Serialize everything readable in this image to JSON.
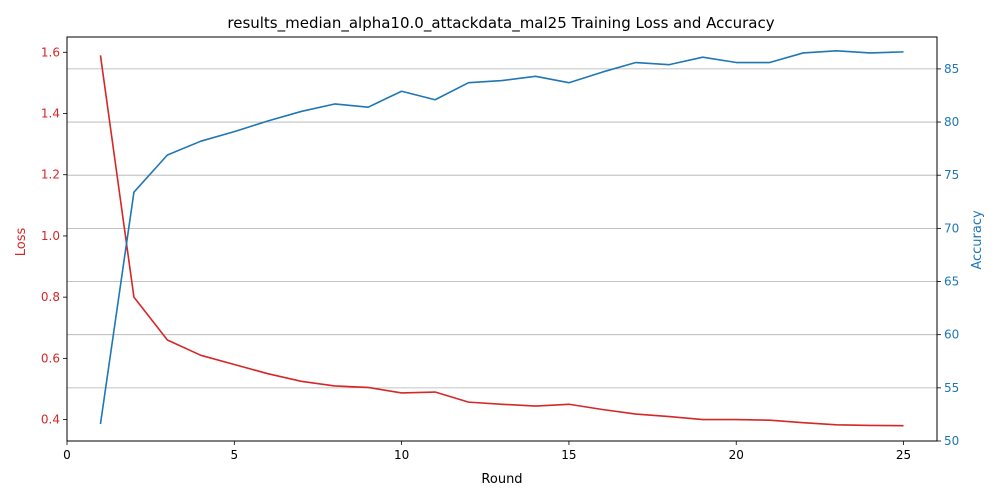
{
  "chart_data": {
    "type": "line",
    "title": "results_median_alpha10.0_attackdata_mal25 Training Loss and Accuracy",
    "xlabel": "Round",
    "ylabel_left": "Loss",
    "ylabel_right": "Accuracy",
    "xlim": [
      0,
      26
    ],
    "ylim_left": [
      0.33,
      1.65
    ],
    "ylim_right": [
      50,
      88
    ],
    "x_ticks": [
      0,
      5,
      10,
      15,
      20,
      25
    ],
    "y_ticks_left": [
      0.4,
      0.6,
      0.8,
      1.0,
      1.2,
      1.4,
      1.6
    ],
    "y_ticks_right": [
      50,
      55,
      60,
      65,
      70,
      75,
      80,
      85
    ],
    "grid": "horizontal gridlines at accuracy ticks",
    "x": [
      1,
      2,
      3,
      4,
      5,
      6,
      7,
      8,
      9,
      10,
      11,
      12,
      13,
      14,
      15,
      16,
      17,
      18,
      19,
      20,
      21,
      22,
      23,
      24,
      25
    ],
    "series": [
      {
        "axis": "left",
        "color": "#d62728",
        "values": [
          1.59,
          0.8,
          0.66,
          0.61,
          0.58,
          0.55,
          0.525,
          0.51,
          0.505,
          0.487,
          0.49,
          0.457,
          0.45,
          0.444,
          0.45,
          0.433,
          0.418,
          0.41,
          0.4,
          0.4,
          0.398,
          0.39,
          0.383,
          0.381,
          0.38
        ]
      },
      {
        "axis": "right",
        "color": "#1f77b4",
        "values": [
          51.6,
          73.4,
          76.9,
          78.2,
          79.1,
          80.1,
          81.0,
          81.7,
          81.4,
          82.9,
          82.1,
          83.7,
          83.9,
          84.3,
          83.7,
          84.7,
          85.6,
          85.4,
          86.1,
          85.6,
          85.6,
          86.5,
          86.7,
          86.5,
          86.6
        ]
      }
    ]
  }
}
